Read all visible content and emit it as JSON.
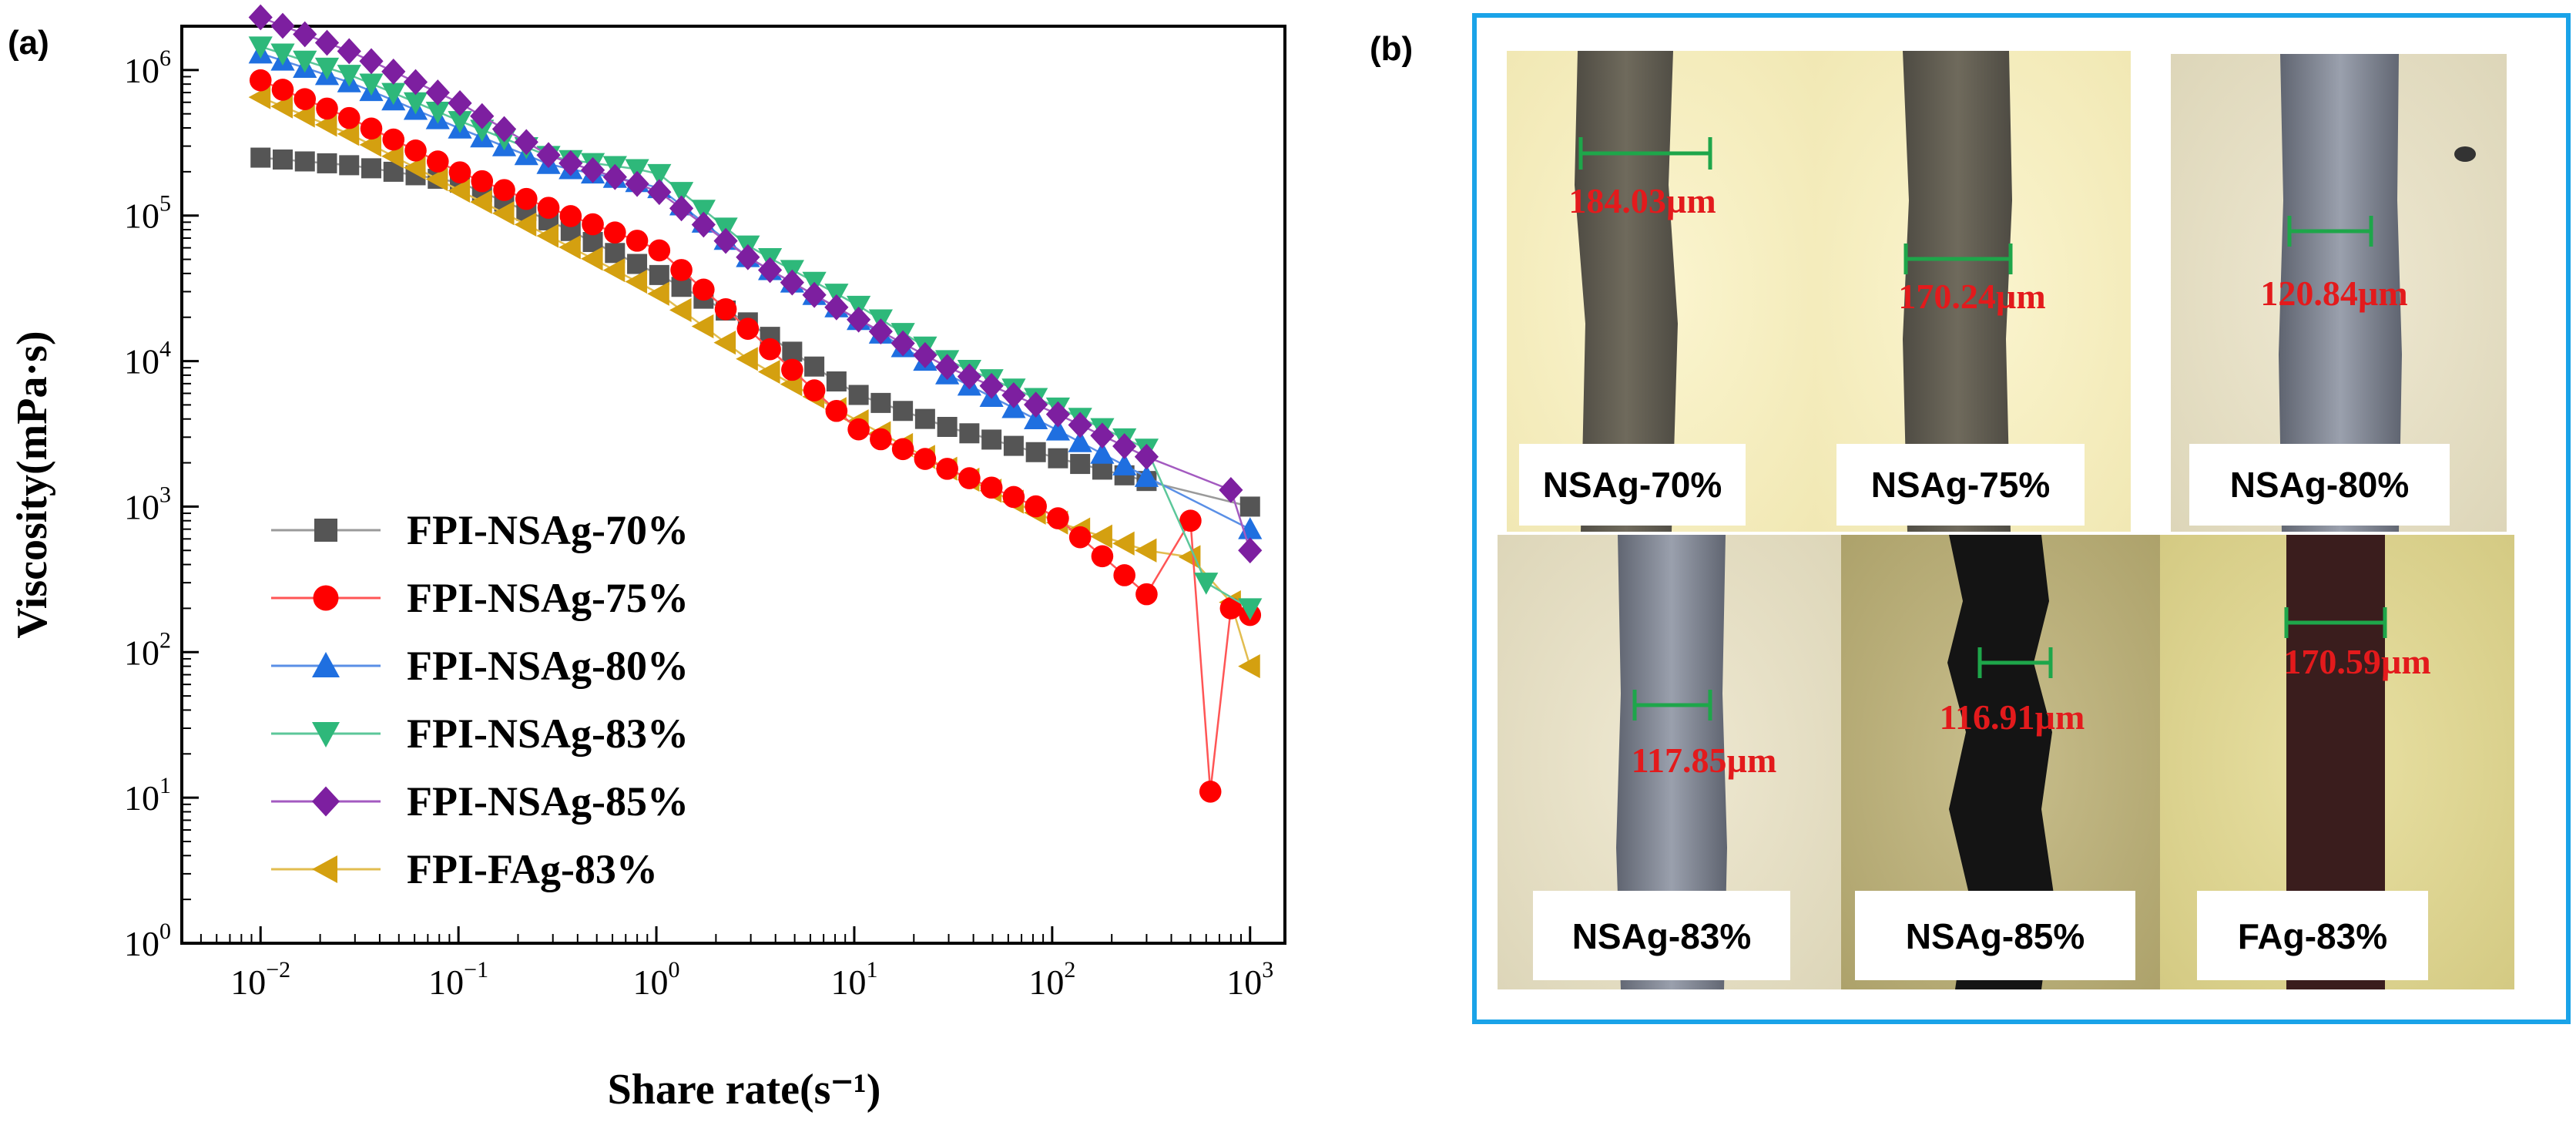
{
  "chart_data": [
    {
      "panel": "(a)",
      "type": "scatter",
      "xscale": "log",
      "yscale": "log",
      "xlabel": "Share rate(s⁻¹)",
      "ylabel": "Viscosity(mPa·s)",
      "xlim": [
        0.004,
        1500
      ],
      "ylim": [
        1,
        2000000
      ],
      "legend_position": "lower-left",
      "x_ticks": [
        {
          "base": "10",
          "exp": "−2",
          "value": 0.01
        },
        {
          "base": "10",
          "exp": "−1",
          "value": 0.1
        },
        {
          "base": "10",
          "exp": "0",
          "value": 1
        },
        {
          "base": "10",
          "exp": "1",
          "value": 10
        },
        {
          "base": "10",
          "exp": "2",
          "value": 100
        },
        {
          "base": "10",
          "exp": "3",
          "value": 1000
        }
      ],
      "y_ticks": [
        {
          "base": "10",
          "exp": "0",
          "value": 1
        },
        {
          "base": "10",
          "exp": "1",
          "value": 10
        },
        {
          "base": "10",
          "exp": "2",
          "value": 100
        },
        {
          "base": "10",
          "exp": "3",
          "value": 1000
        },
        {
          "base": "10",
          "exp": "4",
          "value": 10000
        },
        {
          "base": "10",
          "exp": "5",
          "value": 100000
        },
        {
          "base": "10",
          "exp": "6",
          "value": 1000000
        }
      ],
      "series": [
        {
          "name": "FPI-NSAg-70%",
          "marker": "square",
          "color": "#555555",
          "line_color": "#9a9a9a",
          "points": [
            [
              0.01,
              250000
            ],
            [
              0.03,
              220000
            ],
            [
              0.1,
              170000
            ],
            [
              0.3,
              90000
            ],
            [
              1,
              40000
            ],
            [
              3,
              18000
            ],
            [
              10,
              6000
            ],
            [
              30,
              3500
            ],
            [
              100,
              2200
            ],
            [
              300,
              1500
            ],
            [
              1000,
              1000
            ]
          ]
        },
        {
          "name": "FPI-NSAg-75%",
          "marker": "circle",
          "color": "#ff0000",
          "line_color": "#ff5555",
          "points": [
            [
              0.01,
              850000
            ],
            [
              0.03,
              450000
            ],
            [
              0.1,
              200000
            ],
            [
              0.3,
              110000
            ],
            [
              1,
              60000
            ],
            [
              3,
              16000
            ],
            [
              10,
              3500
            ],
            [
              30,
              1800
            ],
            [
              100,
              900
            ],
            [
              300,
              250
            ],
            [
              500,
              800
            ],
            [
              630,
              11
            ],
            [
              800,
              200
            ],
            [
              1000,
              180
            ]
          ]
        },
        {
          "name": "FPI-NSAg-80%",
          "marker": "triangle-up",
          "color": "#1f6fe0",
          "line_color": "#5a8fe6",
          "points": [
            [
              0.01,
              1300000
            ],
            [
              0.03,
              800000
            ],
            [
              0.1,
              400000
            ],
            [
              0.3,
              220000
            ],
            [
              1,
              160000
            ],
            [
              3,
              50000
            ],
            [
              10,
              20000
            ],
            [
              30,
              8000
            ],
            [
              100,
              3500
            ],
            [
              300,
              1600
            ],
            [
              1000,
              700
            ]
          ]
        },
        {
          "name": "FPI-NSAg-83%",
          "marker": "triangle-down",
          "color": "#2eb87a",
          "line_color": "#5cc79a",
          "points": [
            [
              0.01,
              1450000
            ],
            [
              0.03,
              900000
            ],
            [
              0.1,
              450000
            ],
            [
              0.3,
              250000
            ],
            [
              1,
              200000
            ],
            [
              3,
              60000
            ],
            [
              10,
              25000
            ],
            [
              30,
              10000
            ],
            [
              100,
              5000
            ],
            [
              300,
              2500
            ],
            [
              600,
              300
            ],
            [
              1000,
              200
            ]
          ]
        },
        {
          "name": "FPI-NSAg-85%",
          "marker": "diamond",
          "color": "#7d1fa0",
          "line_color": "#a35ac0",
          "points": [
            [
              0.01,
              2300000
            ],
            [
              0.03,
              1300000
            ],
            [
              0.1,
              600000
            ],
            [
              0.3,
              250000
            ],
            [
              1,
              150000
            ],
            [
              3,
              50000
            ],
            [
              10,
              20000
            ],
            [
              30,
              9000
            ],
            [
              100,
              4500
            ],
            [
              300,
              2200
            ],
            [
              800,
              1300
            ],
            [
              1000,
              500
            ]
          ]
        },
        {
          "name": "FPI-FAg-83%",
          "marker": "triangle-left",
          "color": "#d4a010",
          "line_color": "#e2bd50",
          "points": [
            [
              0.01,
              650000
            ],
            [
              0.03,
              350000
            ],
            [
              0.1,
              150000
            ],
            [
              0.3,
              70000
            ],
            [
              1,
              30000
            ],
            [
              3,
              10000
            ],
            [
              10,
              4000
            ],
            [
              30,
              1800
            ],
            [
              100,
              800
            ],
            [
              300,
              500
            ],
            [
              500,
              450
            ],
            [
              800,
              220
            ],
            [
              1000,
              80
            ]
          ]
        }
      ]
    },
    {
      "panel": "(b)",
      "type": "image-grid",
      "images": [
        {
          "caption": "NSAg-70%",
          "measurement": "184.03µm"
        },
        {
          "caption": "NSAg-75%",
          "measurement": "170.24µm"
        },
        {
          "caption": "NSAg-80%",
          "measurement": "120.84µm"
        },
        {
          "caption": "NSAg-83%",
          "measurement": "117.85µm"
        },
        {
          "caption": "NSAg-85%",
          "measurement": "116.91µm"
        },
        {
          "caption": "FAg-83%",
          "measurement": "170.59µm"
        }
      ]
    }
  ],
  "colors": {
    "frame_border": "#1aa3e8",
    "measure_bar": "#1ea64a",
    "measure_text": "#e31a1c"
  }
}
